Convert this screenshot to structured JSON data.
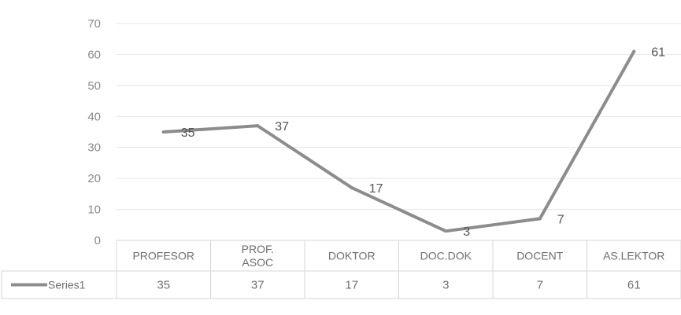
{
  "chart_data": {
    "type": "line",
    "categories": [
      [
        "PROFESOR"
      ],
      [
        "PROF.",
        "ASOC"
      ],
      [
        "DOKTOR"
      ],
      [
        "DOC.DOK"
      ],
      [
        "DOCENT"
      ],
      [
        "AS.LEKTOR"
      ]
    ],
    "series": [
      {
        "name": "Series1",
        "values": [
          35,
          37,
          17,
          3,
          7,
          61
        ]
      }
    ],
    "data_labels": [
      "35",
      "37",
      "17",
      "3",
      "7",
      "61"
    ],
    "table_values": [
      "35",
      "37",
      "17",
      "3",
      "7",
      "61"
    ],
    "y_ticks": [
      "0",
      "10",
      "20",
      "30",
      "40",
      "50",
      "60",
      "70"
    ],
    "ylim": [
      0,
      70
    ],
    "grid": true,
    "legend": "data-table-left",
    "line_color": "#8c8c8c",
    "grid_color": "#e4e4e4",
    "border_color": "#d6d6d6"
  }
}
